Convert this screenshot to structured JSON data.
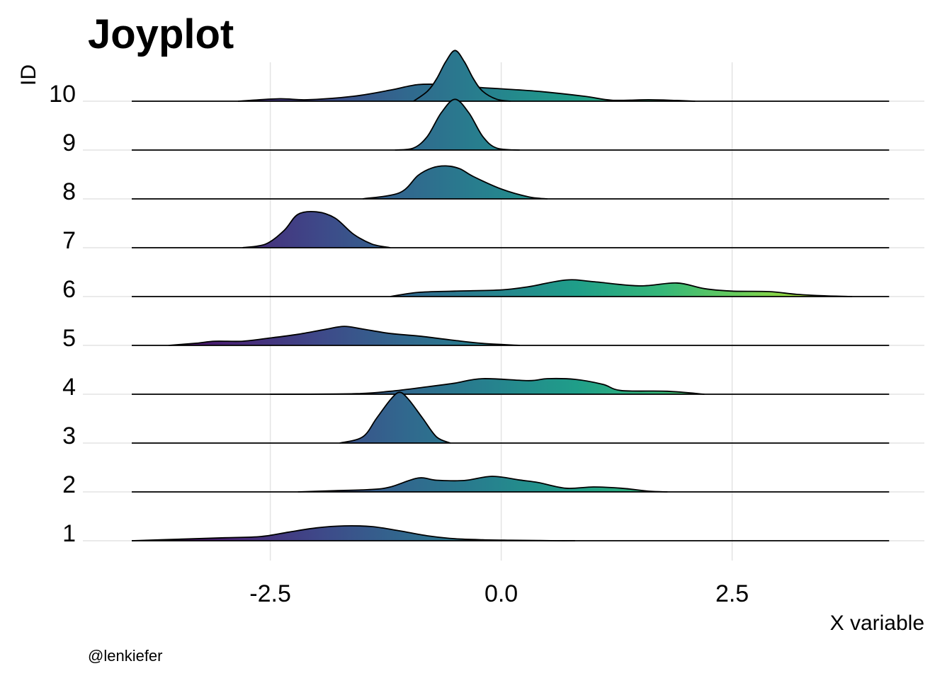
{
  "chart_data": {
    "type": "ridgeline",
    "title": "Joyplot",
    "xlabel": "X variable",
    "ylabel": "ID",
    "caption": "@lenkiefer",
    "xlim": [
      -4.1,
      4.5
    ],
    "x_ticks": [
      -2.5,
      0.0,
      2.5
    ],
    "x_tick_labels": [
      "-2.5",
      "0.0",
      "2.5"
    ],
    "grid": true,
    "colormap": "viridis",
    "color_range": [
      -3.8,
      4.5
    ],
    "baseline_range": [
      -4.0,
      4.2
    ],
    "series": [
      {
        "id": "1",
        "x": [
          -4.0,
          -3.5,
          -3.0,
          -2.6,
          -2.3,
          -2.0,
          -1.7,
          -1.4,
          -1.1,
          -0.8,
          -0.5,
          -0.2,
          0.1,
          0.4,
          0.6,
          0.8
        ],
        "y": [
          0.0,
          0.06,
          0.12,
          0.17,
          0.35,
          0.52,
          0.6,
          0.57,
          0.4,
          0.2,
          0.08,
          0.04,
          0.02,
          0.01,
          0.0,
          0.0
        ]
      },
      {
        "id": "2",
        "x": [
          -2.2,
          -1.8,
          -1.4,
          -1.2,
          -0.9,
          -0.7,
          -0.4,
          -0.1,
          0.2,
          0.4,
          0.7,
          1.0,
          1.3,
          1.6,
          1.8
        ],
        "y": [
          0.0,
          0.05,
          0.1,
          0.2,
          0.56,
          0.47,
          0.46,
          0.63,
          0.48,
          0.38,
          0.15,
          0.2,
          0.15,
          0.03,
          0.0
        ]
      },
      {
        "id": "3",
        "x": [
          -1.75,
          -1.5,
          -1.35,
          -1.2,
          -1.1,
          -1.0,
          -0.85,
          -0.7,
          -0.55
        ],
        "y": [
          0.0,
          0.25,
          1.0,
          1.75,
          2.05,
          1.75,
          1.0,
          0.25,
          0.0
        ]
      },
      {
        "id": "4",
        "x": [
          -2.5,
          -1.6,
          -1.2,
          -0.8,
          -0.5,
          -0.2,
          0.3,
          0.5,
          0.8,
          1.1,
          1.3,
          1.8,
          2.2
        ],
        "y": [
          0.0,
          0.02,
          0.12,
          0.3,
          0.45,
          0.63,
          0.55,
          0.63,
          0.6,
          0.4,
          0.15,
          0.12,
          0.0
        ]
      },
      {
        "id": "5",
        "x": [
          -3.6,
          -3.3,
          -3.1,
          -2.8,
          -2.5,
          -2.2,
          -1.9,
          -1.7,
          -1.5,
          -1.2,
          -0.9,
          -0.5,
          -0.2,
          0.2
        ],
        "y": [
          0.0,
          0.09,
          0.17,
          0.17,
          0.3,
          0.45,
          0.65,
          0.77,
          0.66,
          0.48,
          0.38,
          0.2,
          0.08,
          0.0
        ]
      },
      {
        "id": "6",
        "x": [
          -1.2,
          -0.9,
          -0.5,
          0.0,
          0.3,
          0.7,
          1.0,
          1.5,
          1.9,
          2.2,
          2.5,
          2.9,
          3.2,
          3.5,
          3.8
        ],
        "y": [
          0.0,
          0.17,
          0.22,
          0.27,
          0.4,
          0.67,
          0.6,
          0.43,
          0.55,
          0.32,
          0.22,
          0.2,
          0.09,
          0.03,
          0.0
        ]
      },
      {
        "id": "7",
        "x": [
          -2.8,
          -2.55,
          -2.35,
          -2.2,
          -2.0,
          -1.8,
          -1.6,
          -1.4,
          -1.2
        ],
        "y": [
          0.0,
          0.15,
          0.7,
          1.35,
          1.45,
          1.2,
          0.55,
          0.15,
          0.0
        ]
      },
      {
        "id": "8",
        "x": [
          -1.5,
          -1.1,
          -0.9,
          -0.75,
          -0.6,
          -0.45,
          -0.3,
          0.0,
          0.3,
          0.5
        ],
        "y": [
          0.0,
          0.25,
          0.95,
          1.25,
          1.33,
          1.22,
          0.9,
          0.4,
          0.08,
          0.0
        ]
      },
      {
        "id": "9",
        "x": [
          -1.15,
          -0.95,
          -0.8,
          -0.65,
          -0.5,
          -0.35,
          -0.2,
          -0.05,
          0.2
        ],
        "y": [
          0.0,
          0.08,
          0.55,
          1.5,
          2.05,
          1.5,
          0.55,
          0.08,
          0.0
        ]
      },
      {
        "id": "10",
        "x": [
          -2.85,
          -2.4,
          -2.1,
          -1.6,
          -1.2,
          -0.9,
          -0.6,
          -0.3,
          0.0,
          0.4,
          0.9,
          1.2,
          1.6,
          1.9,
          2.1
        ],
        "y": [
          0.0,
          0.1,
          0.06,
          0.2,
          0.45,
          0.67,
          0.67,
          0.57,
          0.5,
          0.4,
          0.2,
          0.04,
          0.06,
          0.03,
          0.0
        ]
      }
    ],
    "peak_series": [
      {
        "id": "10",
        "x": [
          -0.95,
          -0.8,
          -0.7,
          -0.6,
          -0.5,
          -0.4,
          -0.3,
          -0.2,
          -0.05,
          0.1
        ],
        "y": [
          0.0,
          0.4,
          0.9,
          1.6,
          2.05,
          1.6,
          0.9,
          0.4,
          0.08,
          0.0
        ]
      }
    ]
  }
}
